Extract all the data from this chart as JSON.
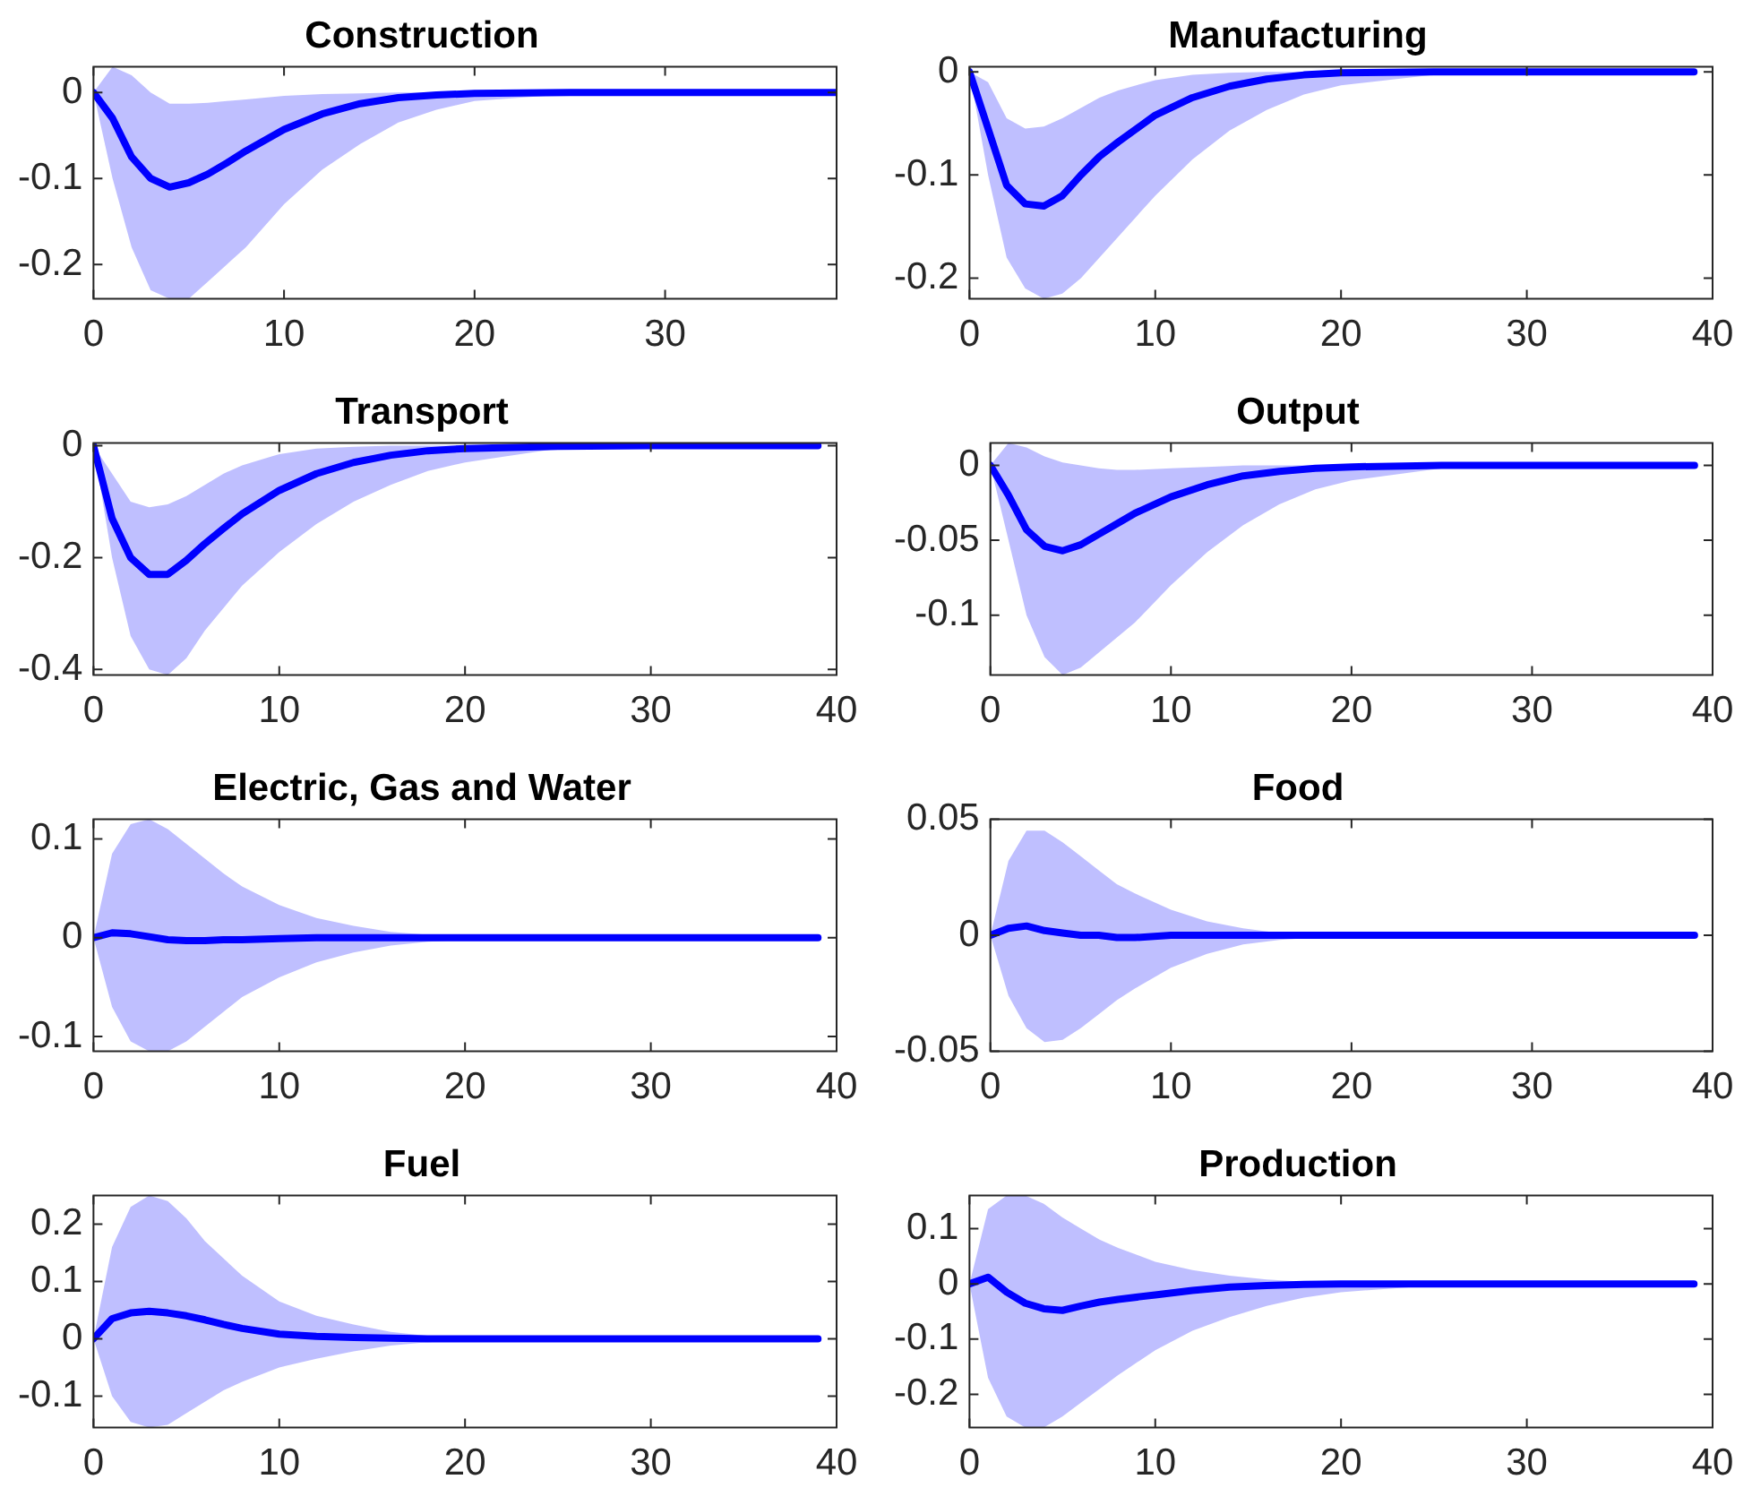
{
  "chart_data": [
    {
      "type": "line",
      "title": "Construction",
      "x": [
        0,
        1,
        2,
        3,
        4,
        5,
        6,
        7,
        8,
        10,
        12,
        14,
        16,
        18,
        20,
        25,
        30,
        39
      ],
      "xlim": [
        0,
        39
      ],
      "xticks": [
        0,
        10,
        20,
        30
      ],
      "ylim": [
        -0.24,
        0.03
      ],
      "yticks": [
        -0.2,
        -0.1,
        0
      ],
      "grid": false,
      "legend": false,
      "marker": "none",
      "series": [
        {
          "color": "#0000ff",
          "values": [
            0,
            -0.03,
            -0.075,
            -0.1,
            -0.11,
            -0.105,
            -0.095,
            -0.082,
            -0.068,
            -0.043,
            -0.025,
            -0.013,
            -0.006,
            -0.003,
            -0.001,
            0,
            0,
            0
          ],
          "lower": [
            0,
            -0.1,
            -0.18,
            -0.23,
            -0.24,
            -0.24,
            -0.22,
            -0.2,
            -0.18,
            -0.13,
            -0.09,
            -0.06,
            -0.035,
            -0.02,
            -0.01,
            -0.002,
            0,
            0
          ],
          "upper": [
            0,
            0.03,
            0.02,
            0.0,
            -0.013,
            -0.013,
            -0.012,
            -0.01,
            -0.008,
            -0.004,
            -0.002,
            -0.001,
            0,
            0,
            0,
            0,
            0,
            0
          ]
        }
      ]
    },
    {
      "type": "line",
      "title": "Manufacturing",
      "x": [
        0,
        1,
        2,
        3,
        4,
        5,
        6,
        7,
        8,
        10,
        12,
        14,
        16,
        18,
        20,
        25,
        30,
        39
      ],
      "xlim": [
        0,
        40
      ],
      "xticks": [
        0,
        10,
        20,
        30,
        40
      ],
      "ylim": [
        -0.22,
        0.005
      ],
      "yticks": [
        -0.2,
        -0.1,
        0
      ],
      "grid": false,
      "legend": false,
      "marker": "none",
      "series": [
        {
          "color": "#0000ff",
          "values": [
            0,
            -0.055,
            -0.11,
            -0.128,
            -0.13,
            -0.12,
            -0.1,
            -0.082,
            -0.068,
            -0.042,
            -0.025,
            -0.014,
            -0.007,
            -0.003,
            -0.001,
            0,
            0,
            0
          ],
          "lower": [
            0,
            -0.1,
            -0.18,
            -0.21,
            -0.22,
            -0.215,
            -0.2,
            -0.18,
            -0.16,
            -0.12,
            -0.085,
            -0.057,
            -0.037,
            -0.022,
            -0.013,
            -0.003,
            0,
            0
          ],
          "upper": [
            0,
            -0.01,
            -0.045,
            -0.055,
            -0.053,
            -0.045,
            -0.035,
            -0.025,
            -0.018,
            -0.008,
            -0.003,
            -0.001,
            0,
            0,
            0,
            0,
            0,
            0
          ]
        }
      ]
    },
    {
      "type": "line",
      "title": "Transport",
      "x": [
        0,
        1,
        2,
        3,
        4,
        5,
        6,
        7,
        8,
        10,
        12,
        14,
        16,
        18,
        20,
        25,
        30,
        39
      ],
      "xlim": [
        0,
        40
      ],
      "xticks": [
        0,
        10,
        20,
        30,
        40
      ],
      "ylim": [
        -0.41,
        0.005
      ],
      "yticks": [
        -0.4,
        -0.2,
        0
      ],
      "grid": false,
      "legend": false,
      "marker": "none",
      "series": [
        {
          "color": "#0000ff",
          "values": [
            0,
            -0.13,
            -0.2,
            -0.23,
            -0.23,
            -0.205,
            -0.175,
            -0.148,
            -0.122,
            -0.08,
            -0.05,
            -0.03,
            -0.017,
            -0.009,
            -0.005,
            -0.001,
            0,
            0
          ],
          "lower": [
            0,
            -0.2,
            -0.34,
            -0.4,
            -0.41,
            -0.38,
            -0.33,
            -0.29,
            -0.25,
            -0.19,
            -0.14,
            -0.1,
            -0.07,
            -0.045,
            -0.03,
            -0.005,
            -0.001,
            0
          ],
          "upper": [
            0,
            -0.05,
            -0.1,
            -0.11,
            -0.105,
            -0.09,
            -0.07,
            -0.05,
            -0.035,
            -0.015,
            -0.005,
            -0.002,
            0,
            0,
            0,
            0,
            0,
            0
          ]
        }
      ]
    },
    {
      "type": "line",
      "title": "Output",
      "x": [
        0,
        1,
        2,
        3,
        4,
        5,
        6,
        7,
        8,
        10,
        12,
        14,
        16,
        18,
        20,
        25,
        30,
        39
      ],
      "xlim": [
        0,
        40
      ],
      "xticks": [
        0,
        10,
        20,
        30,
        40
      ],
      "ylim": [
        -0.14,
        0.015
      ],
      "yticks": [
        -0.1,
        -0.05,
        0
      ],
      "grid": false,
      "legend": false,
      "marker": "none",
      "series": [
        {
          "color": "#0000ff",
          "values": [
            0,
            -0.02,
            -0.043,
            -0.054,
            -0.057,
            -0.053,
            -0.046,
            -0.039,
            -0.032,
            -0.021,
            -0.013,
            -0.007,
            -0.004,
            -0.002,
            -0.001,
            0,
            0,
            0
          ],
          "lower": [
            0,
            -0.05,
            -0.1,
            -0.128,
            -0.14,
            -0.135,
            -0.125,
            -0.115,
            -0.105,
            -0.08,
            -0.058,
            -0.04,
            -0.026,
            -0.016,
            -0.01,
            -0.002,
            0,
            0
          ],
          "upper": [
            0,
            0.015,
            0.012,
            0.006,
            0.002,
            0,
            -0.002,
            -0.003,
            -0.003,
            -0.002,
            -0.001,
            0,
            0,
            0,
            0,
            0,
            0,
            0
          ]
        }
      ]
    },
    {
      "type": "line",
      "title": "Electric, Gas and Water",
      "x": [
        0,
        1,
        2,
        3,
        4,
        5,
        6,
        7,
        8,
        10,
        12,
        14,
        16,
        18,
        20,
        25,
        30,
        39
      ],
      "xlim": [
        0,
        40
      ],
      "xticks": [
        0,
        10,
        20,
        30,
        40
      ],
      "ylim": [
        -0.115,
        0.12
      ],
      "yticks": [
        -0.1,
        0,
        0.1
      ],
      "grid": false,
      "legend": false,
      "marker": "none",
      "series": [
        {
          "color": "#0000ff",
          "values": [
            0,
            0.005,
            0.004,
            0.001,
            -0.002,
            -0.003,
            -0.003,
            -0.002,
            -0.002,
            -0.001,
            0,
            0,
            0,
            0,
            0,
            0,
            0,
            0
          ],
          "lower": [
            0,
            -0.07,
            -0.105,
            -0.115,
            -0.115,
            -0.105,
            -0.09,
            -0.075,
            -0.06,
            -0.04,
            -0.025,
            -0.015,
            -0.008,
            -0.004,
            -0.002,
            0,
            0,
            0
          ],
          "upper": [
            0,
            0.085,
            0.115,
            0.12,
            0.11,
            0.095,
            0.08,
            0.065,
            0.052,
            0.033,
            0.02,
            0.012,
            0.006,
            0.003,
            0.001,
            0,
            0,
            0
          ]
        }
      ]
    },
    {
      "type": "line",
      "title": "Food",
      "x": [
        0,
        1,
        2,
        3,
        4,
        5,
        6,
        7,
        8,
        10,
        12,
        14,
        16,
        18,
        20,
        25,
        30,
        39
      ],
      "xlim": [
        0,
        40
      ],
      "xticks": [
        0,
        10,
        20,
        30,
        40
      ],
      "ylim": [
        -0.05,
        0.05
      ],
      "yticks": [
        -0.05,
        0,
        0.05
      ],
      "grid": false,
      "legend": false,
      "marker": "none",
      "series": [
        {
          "color": "#0000ff",
          "values": [
            0,
            0.003,
            0.004,
            0.002,
            0.001,
            0,
            0,
            -0.001,
            -0.001,
            0,
            0,
            0,
            0,
            0,
            0,
            0,
            0,
            0
          ],
          "lower": [
            0,
            -0.026,
            -0.04,
            -0.046,
            -0.045,
            -0.04,
            -0.034,
            -0.028,
            -0.023,
            -0.014,
            -0.008,
            -0.004,
            -0.002,
            -0.001,
            0,
            0,
            0,
            0
          ],
          "upper": [
            0,
            0.032,
            0.045,
            0.045,
            0.04,
            0.034,
            0.028,
            0.022,
            0.018,
            0.011,
            0.006,
            0.003,
            0.001,
            0,
            0,
            0,
            0,
            0
          ]
        }
      ]
    },
    {
      "type": "line",
      "title": "Fuel",
      "x": [
        0,
        1,
        2,
        3,
        4,
        5,
        6,
        7,
        8,
        10,
        12,
        14,
        16,
        18,
        20,
        25,
        30,
        39
      ],
      "xlim": [
        0,
        40
      ],
      "xticks": [
        0,
        10,
        20,
        30,
        40
      ],
      "ylim": [
        -0.155,
        0.25
      ],
      "yticks": [
        -0.1,
        0,
        0.1,
        0.2
      ],
      "grid": false,
      "legend": false,
      "marker": "none",
      "series": [
        {
          "color": "#0000ff",
          "values": [
            0,
            0.035,
            0.045,
            0.048,
            0.045,
            0.04,
            0.033,
            0.025,
            0.018,
            0.008,
            0.004,
            0.002,
            0.001,
            0,
            0,
            0,
            0,
            0
          ],
          "lower": [
            0,
            -0.1,
            -0.145,
            -0.155,
            -0.15,
            -0.13,
            -0.11,
            -0.09,
            -0.075,
            -0.05,
            -0.035,
            -0.022,
            -0.012,
            -0.006,
            -0.003,
            0,
            0,
            0
          ],
          "upper": [
            0,
            0.16,
            0.23,
            0.25,
            0.24,
            0.21,
            0.17,
            0.14,
            0.11,
            0.065,
            0.04,
            0.025,
            0.012,
            0.005,
            0.002,
            0,
            0,
            0
          ]
        }
      ]
    },
    {
      "type": "line",
      "title": "Production",
      "x": [
        0,
        1,
        2,
        3,
        4,
        5,
        6,
        7,
        8,
        10,
        12,
        14,
        16,
        18,
        20,
        25,
        30,
        39
      ],
      "xlim": [
        0,
        40
      ],
      "xticks": [
        0,
        10,
        20,
        30,
        40
      ],
      "ylim": [
        -0.26,
        0.16
      ],
      "yticks": [
        -0.2,
        -0.1,
        0,
        0.1
      ],
      "grid": false,
      "legend": false,
      "marker": "none",
      "series": [
        {
          "color": "#0000ff",
          "values": [
            0,
            0.012,
            -0.015,
            -0.035,
            -0.045,
            -0.048,
            -0.04,
            -0.033,
            -0.028,
            -0.02,
            -0.012,
            -0.006,
            -0.003,
            -0.001,
            0,
            0,
            0,
            0
          ],
          "lower": [
            0,
            -0.17,
            -0.24,
            -0.26,
            -0.26,
            -0.24,
            -0.215,
            -0.19,
            -0.165,
            -0.12,
            -0.085,
            -0.06,
            -0.04,
            -0.025,
            -0.015,
            -0.003,
            0,
            0
          ],
          "upper": [
            0,
            0.135,
            0.16,
            0.16,
            0.145,
            0.12,
            0.1,
            0.08,
            0.065,
            0.04,
            0.025,
            0.015,
            0.008,
            0.004,
            0.002,
            0,
            0,
            0
          ]
        }
      ]
    }
  ]
}
